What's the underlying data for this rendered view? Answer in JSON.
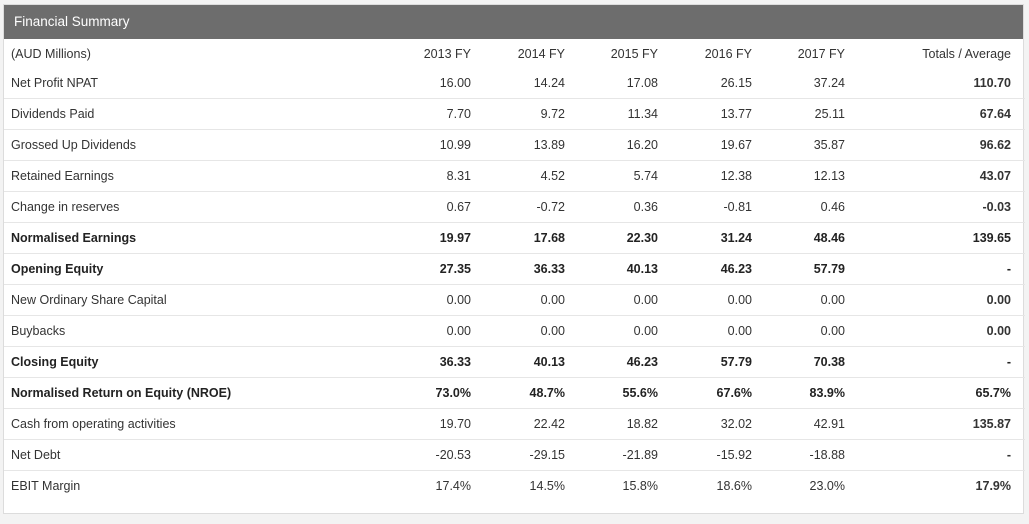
{
  "panel": {
    "title": "Financial Summary"
  },
  "table": {
    "headers": [
      "(AUD Millions)",
      "2013 FY",
      "2014 FY",
      "2015 FY",
      "2016 FY",
      "2017 FY",
      "Totals / Average"
    ],
    "rows": [
      {
        "label": "Net Profit NPAT",
        "values": [
          "16.00",
          "14.24",
          "17.08",
          "26.15",
          "37.24"
        ],
        "total": "110.70"
      },
      {
        "label": "Dividends Paid",
        "values": [
          "7.70",
          "9.72",
          "11.34",
          "13.77",
          "25.11"
        ],
        "total": "67.64"
      },
      {
        "label": "Grossed Up Dividends",
        "values": [
          "10.99",
          "13.89",
          "16.20",
          "19.67",
          "35.87"
        ],
        "total": "96.62"
      },
      {
        "label": "Retained Earnings",
        "values": [
          "8.31",
          "4.52",
          "5.74",
          "12.38",
          "12.13"
        ],
        "total": "43.07"
      },
      {
        "label": "Change in reserves",
        "values": [
          "0.67",
          "-0.72",
          "0.36",
          "-0.81",
          "0.46"
        ],
        "total": "-0.03"
      },
      {
        "label": "Normalised Earnings",
        "values": [
          "19.97",
          "17.68",
          "22.30",
          "31.24",
          "48.46"
        ],
        "total": "139.65"
      },
      {
        "label": "Opening Equity",
        "values": [
          "27.35",
          "36.33",
          "40.13",
          "46.23",
          "57.79"
        ],
        "total": "-"
      },
      {
        "label": "New Ordinary Share Capital",
        "values": [
          "0.00",
          "0.00",
          "0.00",
          "0.00",
          "0.00"
        ],
        "total": "0.00"
      },
      {
        "label": "Buybacks",
        "values": [
          "0.00",
          "0.00",
          "0.00",
          "0.00",
          "0.00"
        ],
        "total": "0.00"
      },
      {
        "label": "Closing Equity",
        "values": [
          "36.33",
          "40.13",
          "46.23",
          "57.79",
          "70.38"
        ],
        "total": "-"
      },
      {
        "label": "Normalised Return on Equity (NROE)",
        "values": [
          "73.0%",
          "48.7%",
          "55.6%",
          "67.6%",
          "83.9%"
        ],
        "total": "65.7%"
      },
      {
        "label": "Cash from operating activities",
        "values": [
          "19.70",
          "22.42",
          "18.82",
          "32.02",
          "42.91"
        ],
        "total": "135.87"
      },
      {
        "label": "Net Debt",
        "values": [
          "-20.53",
          "-29.15",
          "-21.89",
          "-15.92",
          "-18.88"
        ],
        "total": "-"
      },
      {
        "label": "EBIT Margin",
        "values": [
          "17.4%",
          "14.5%",
          "15.8%",
          "18.6%",
          "23.0%"
        ],
        "total": "17.9%"
      }
    ]
  }
}
